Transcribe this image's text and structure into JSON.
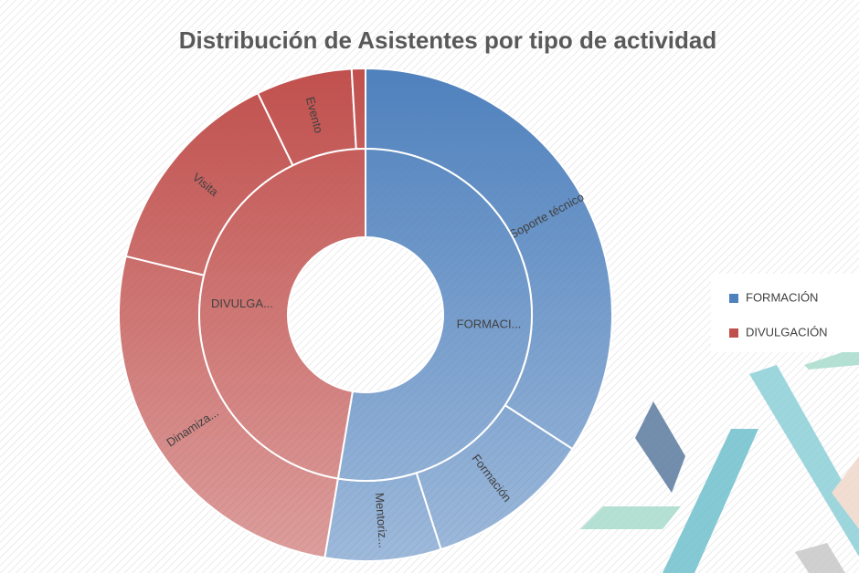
{
  "chart_data": {
    "type": "sunburst",
    "title": "Distribución de Asistentes por tipo de actividad",
    "series": [
      {
        "name": "FORMACIÓN",
        "label": "FORMACI...",
        "color": "#4f81bd",
        "categories": [
          "Soporte técnico",
          "Formación",
          "Mentoriz..."
        ],
        "values": [
          34.2,
          10.9,
          7.6
        ]
      },
      {
        "name": "DIVULGACIÓN",
        "label": "DIVULGA...",
        "color": "#c0504d",
        "categories": [
          "Dinamiza...",
          "Visita",
          "Evento",
          null
        ],
        "values": [
          26.2,
          14.0,
          6.3,
          0.9
        ]
      }
    ],
    "legend": "right"
  }
}
